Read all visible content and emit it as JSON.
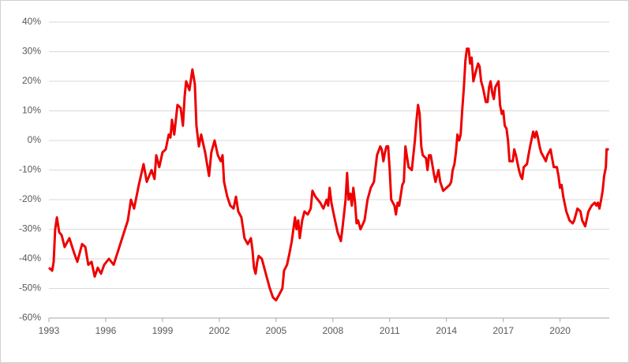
{
  "chart_data": {
    "type": "line",
    "x": [
      1993.0,
      1993.17,
      1993.25,
      1993.33,
      1993.42,
      1993.54,
      1993.67,
      1993.83,
      1994.08,
      1994.33,
      1994.5,
      1994.75,
      1994.92,
      1995.08,
      1995.25,
      1995.42,
      1995.58,
      1995.75,
      1995.92,
      1996.17,
      1996.42,
      1996.67,
      1996.92,
      1997.17,
      1997.33,
      1997.5,
      1997.75,
      1998,
      1998.17,
      1998.42,
      1998.58,
      1998.67,
      1998.83,
      1999,
      1999.17,
      1999.33,
      1999.42,
      1999.5,
      1999.62,
      1999.79,
      1999.96,
      2000.08,
      2000.17,
      2000.25,
      2000.42,
      2000.58,
      2000.71,
      2000.79,
      2000.92,
      2001.04,
      2001.25,
      2001.46,
      2001.58,
      2001.75,
      2001.92,
      2002.08,
      2002.17,
      2002.25,
      2002.42,
      2002.58,
      2002.75,
      2002.88,
      2003,
      2003.17,
      2003.33,
      2003.5,
      2003.67,
      2003.75,
      2003.83,
      2003.92,
      2004,
      2004.08,
      2004.25,
      2004.33,
      2004.5,
      2004.67,
      2004.83,
      2005,
      2005.17,
      2005.33,
      2005.42,
      2005.58,
      2005.71,
      2005.83,
      2006,
      2006.08,
      2006.17,
      2006.25,
      2006.38,
      2006.5,
      2006.67,
      2006.83,
      2006.92,
      2007.08,
      2007.33,
      2007.5,
      2007.67,
      2007.75,
      2007.83,
      2007.92,
      2008.08,
      2008.25,
      2008.42,
      2008.5,
      2008.67,
      2008.75,
      2008.83,
      2008.92,
      2009,
      2009.08,
      2009.17,
      2009.25,
      2009.33,
      2009.46,
      2009.67,
      2009.83,
      2010,
      2010.17,
      2010.33,
      2010.5,
      2010.58,
      2010.67,
      2010.75,
      2010.83,
      2010.92,
      2011,
      2011.08,
      2011.25,
      2011.33,
      2011.42,
      2011.5,
      2011.67,
      2011.75,
      2011.83,
      2012,
      2012.17,
      2012.33,
      2012.42,
      2012.5,
      2012.58,
      2012.67,
      2012.75,
      2012.92,
      2013,
      2013.08,
      2013.17,
      2013.33,
      2013.42,
      2013.5,
      2013.58,
      2013.67,
      2013.83,
      2014,
      2014.17,
      2014.25,
      2014.33,
      2014.42,
      2014.5,
      2014.58,
      2014.67,
      2014.75,
      2014.83,
      2014.92,
      2015,
      2015.08,
      2015.17,
      2015.25,
      2015.33,
      2015.42,
      2015.58,
      2015.67,
      2015.75,
      2015.83,
      2015.92,
      2016.08,
      2016.17,
      2016.25,
      2016.33,
      2016.42,
      2016.5,
      2016.58,
      2016.75,
      2016.83,
      2016.92,
      2017,
      2017.08,
      2017.17,
      2017.25,
      2017.33,
      2017.5,
      2017.58,
      2017.67,
      2017.83,
      2017.92,
      2018,
      2018.08,
      2018.25,
      2018.33,
      2018.42,
      2018.58,
      2018.67,
      2018.75,
      2018.83,
      2018.92,
      2019,
      2019.17,
      2019.25,
      2019.33,
      2019.5,
      2019.58,
      2019.67,
      2019.83,
      2019.92,
      2020,
      2020.08,
      2020.17,
      2020.33,
      2020.5,
      2020.67,
      2020.75,
      2020.92,
      2021.08,
      2021.17,
      2021.33,
      2021.5,
      2021.67,
      2021.83,
      2021.92,
      2022,
      2022.08,
      2022.17,
      2022.25,
      2022.33,
      2022.42,
      2022.46,
      2022.58
    ],
    "values": [
      -43,
      -44,
      -41,
      -30,
      -26,
      -31,
      -32,
      -36,
      -33,
      -38,
      -41,
      -35,
      -36,
      -42,
      -41,
      -46,
      -43,
      -45,
      -42,
      -40,
      -42,
      -37,
      -32,
      -27,
      -20,
      -23,
      -15,
      -8,
      -14,
      -10,
      -13,
      -5,
      -9,
      -4,
      -3,
      2,
      1,
      7,
      2,
      12,
      11,
      5,
      15,
      20,
      17,
      24,
      19,
      5,
      -2,
      2,
      -4,
      -12,
      -4,
      0,
      -5,
      -7,
      -5,
      -14,
      -19,
      -22,
      -23,
      -19,
      -24,
      -26,
      -33,
      -35,
      -33,
      -37,
      -43,
      -45,
      -41,
      -39,
      -40,
      -42,
      -46,
      -50,
      -53,
      -54,
      -52,
      -50,
      -44,
      -42,
      -38,
      -34,
      -26,
      -30,
      -27,
      -33,
      -27,
      -24,
      -25,
      -23,
      -17,
      -19,
      -21,
      -23,
      -20,
      -22,
      -16,
      -21,
      -26,
      -31,
      -34,
      -30,
      -20,
      -11,
      -20,
      -18,
      -22,
      -16,
      -21,
      -28,
      -27,
      -30,
      -27,
      -20,
      -16,
      -14,
      -5,
      -2,
      -3,
      -7,
      -4,
      -2,
      -2,
      -10,
      -20,
      -22,
      -25,
      -21,
      -22,
      -15,
      -14,
      -2,
      -9,
      -10,
      0,
      7,
      12,
      9,
      -2,
      -5,
      -6,
      -10,
      -5,
      -5,
      -11,
      -14,
      -12,
      -10,
      -14,
      -17,
      -16,
      -15,
      -14,
      -10,
      -8,
      -4,
      2,
      0,
      2,
      10,
      18,
      27,
      31,
      31,
      26,
      28,
      20,
      24,
      26,
      25,
      20,
      18,
      13,
      13,
      18,
      20,
      16,
      14,
      18,
      20,
      12,
      9,
      10,
      5,
      4,
      0,
      -7,
      -7,
      -3,
      -5,
      -10,
      -12,
      -13,
      -9,
      -8,
      -5,
      -2,
      3,
      1,
      3,
      1,
      -2,
      -4,
      -6,
      -7,
      -5,
      -3,
      -6,
      -9,
      -9,
      -12,
      -16,
      -15,
      -19,
      -24,
      -27,
      -28,
      -27,
      -23,
      -24,
      -27,
      -29,
      -24,
      -22,
      -21,
      -22,
      -21,
      -23,
      -20,
      -17,
      -12,
      -9,
      -3,
      -3
    ],
    "color": "#ee0000",
    "xlim": [
      1993,
      2022.6
    ],
    "xticks": [
      1993,
      1996,
      1999,
      2002,
      2005,
      2008,
      2011,
      2014,
      2017,
      2020
    ],
    "ylim": [
      -60,
      40
    ],
    "yticks": [
      {
        "value": -60,
        "label": "-60%"
      },
      {
        "value": -50,
        "label": "-50%"
      },
      {
        "value": -40,
        "label": "-40%"
      },
      {
        "value": -30,
        "label": "-30%"
      },
      {
        "value": -20,
        "label": "-20%"
      },
      {
        "value": -10,
        "label": "-10%"
      },
      {
        "value": 0,
        "label": "0%"
      },
      {
        "value": 10,
        "label": "10%"
      },
      {
        "value": 20,
        "label": "20%"
      },
      {
        "value": 30,
        "label": "30%"
      },
      {
        "value": 40,
        "label": "40%"
      }
    ],
    "grid": true
  }
}
